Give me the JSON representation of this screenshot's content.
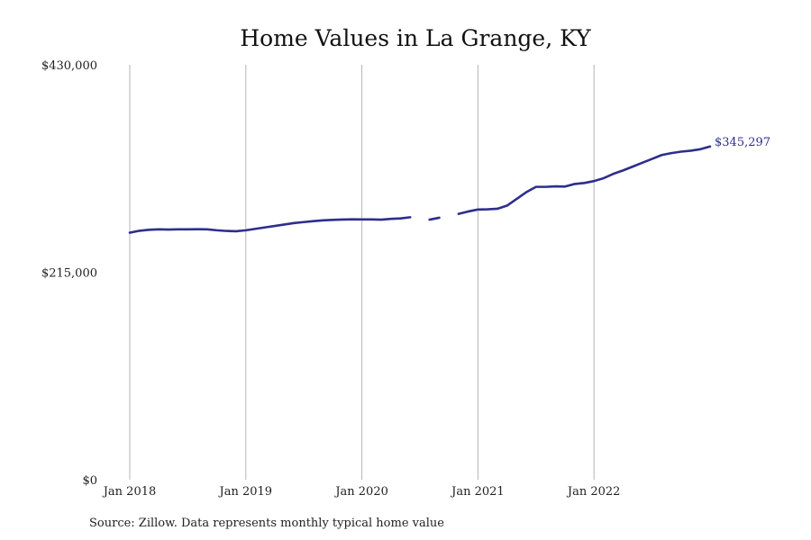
{
  "chart_data": {
    "type": "line",
    "title": "Home Values in La Grange, KY",
    "xlabel": "",
    "ylabel": "",
    "ylim": [
      0,
      430000
    ],
    "xlim": [
      "2018-01",
      "2023-01"
    ],
    "y_ticks": [
      {
        "value": 0,
        "label": "$0"
      },
      {
        "value": 215000,
        "label": "$215,000"
      },
      {
        "value": 430000,
        "label": "$430,000"
      }
    ],
    "x_ticks": [
      {
        "value": "2018-01",
        "label": "Jan 2018"
      },
      {
        "value": "2019-01",
        "label": "Jan 2019"
      },
      {
        "value": "2020-01",
        "label": "Jan 2020"
      },
      {
        "value": "2021-01",
        "label": "Jan 2021"
      },
      {
        "value": "2022-01",
        "label": "Jan 2022"
      }
    ],
    "grid": "vertical",
    "series": [
      {
        "color": "#2e2e8c",
        "points": [
          {
            "x": "2018-01",
            "y": 256000
          },
          {
            "x": "2018-02",
            "y": 258000
          },
          {
            "x": "2018-03",
            "y": 259000
          },
          {
            "x": "2018-04",
            "y": 259500
          },
          {
            "x": "2018-05",
            "y": 259200
          },
          {
            "x": "2018-06",
            "y": 259500
          },
          {
            "x": "2018-07",
            "y": 259500
          },
          {
            "x": "2018-08",
            "y": 259600
          },
          {
            "x": "2018-09",
            "y": 259500
          },
          {
            "x": "2018-10",
            "y": 258500
          },
          {
            "x": "2018-11",
            "y": 257800
          },
          {
            "x": "2018-12",
            "y": 257500
          },
          {
            "x": "2019-01",
            "y": 258500
          },
          {
            "x": "2019-02",
            "y": 260000
          },
          {
            "x": "2019-03",
            "y": 261500
          },
          {
            "x": "2019-04",
            "y": 263000
          },
          {
            "x": "2019-05",
            "y": 264500
          },
          {
            "x": "2019-06",
            "y": 266000
          },
          {
            "x": "2019-07",
            "y": 267000
          },
          {
            "x": "2019-08",
            "y": 268000
          },
          {
            "x": "2019-09",
            "y": 268800
          },
          {
            "x": "2019-10",
            "y": 269300
          },
          {
            "x": "2019-11",
            "y": 269600
          },
          {
            "x": "2019-12",
            "y": 269900
          },
          {
            "x": "2020-01",
            "y": 269700
          },
          {
            "x": "2020-02",
            "y": 269700
          },
          {
            "x": "2020-03",
            "y": 269500
          },
          {
            "x": "2020-04",
            "y": 270300
          },
          {
            "x": "2020-05",
            "y": 270800
          },
          {
            "x": "2020-06",
            "y": 272000
          },
          {
            "x": "2020-07",
            "y": null
          },
          {
            "x": "2020-08",
            "y": 269500
          },
          {
            "x": "2020-09",
            "y": 271500
          },
          {
            "x": "2020-10",
            "y": null
          },
          {
            "x": "2020-11",
            "y": 275500
          },
          {
            "x": "2020-12",
            "y": 278000
          },
          {
            "x": "2021-01",
            "y": 280000
          },
          {
            "x": "2021-02",
            "y": 280200
          },
          {
            "x": "2021-03",
            "y": 280800
          },
          {
            "x": "2021-04",
            "y": 284000
          },
          {
            "x": "2021-05",
            "y": 291000
          },
          {
            "x": "2021-06",
            "y": 298000
          },
          {
            "x": "2021-07",
            "y": 303500
          },
          {
            "x": "2021-08",
            "y": 303500
          },
          {
            "x": "2021-09",
            "y": 304000
          },
          {
            "x": "2021-10",
            "y": 303800
          },
          {
            "x": "2021-11",
            "y": 306500
          },
          {
            "x": "2021-12",
            "y": 307500
          },
          {
            "x": "2022-01",
            "y": 309500
          },
          {
            "x": "2022-02",
            "y": 312500
          },
          {
            "x": "2022-03",
            "y": 317000
          },
          {
            "x": "2022-04",
            "y": 320500
          },
          {
            "x": "2022-05",
            "y": 324500
          },
          {
            "x": "2022-06",
            "y": 328500
          },
          {
            "x": "2022-07",
            "y": 332500
          },
          {
            "x": "2022-08",
            "y": 336500
          },
          {
            "x": "2022-09",
            "y": 338500
          },
          {
            "x": "2022-10",
            "y": 340000
          },
          {
            "x": "2022-11",
            "y": 341000
          },
          {
            "x": "2022-12",
            "y": 342500
          },
          {
            "x": "2023-01",
            "y": 345297
          }
        ]
      }
    ],
    "end_label": "$345,297",
    "source": "Source: Zillow. Data represents monthly typical home value"
  }
}
